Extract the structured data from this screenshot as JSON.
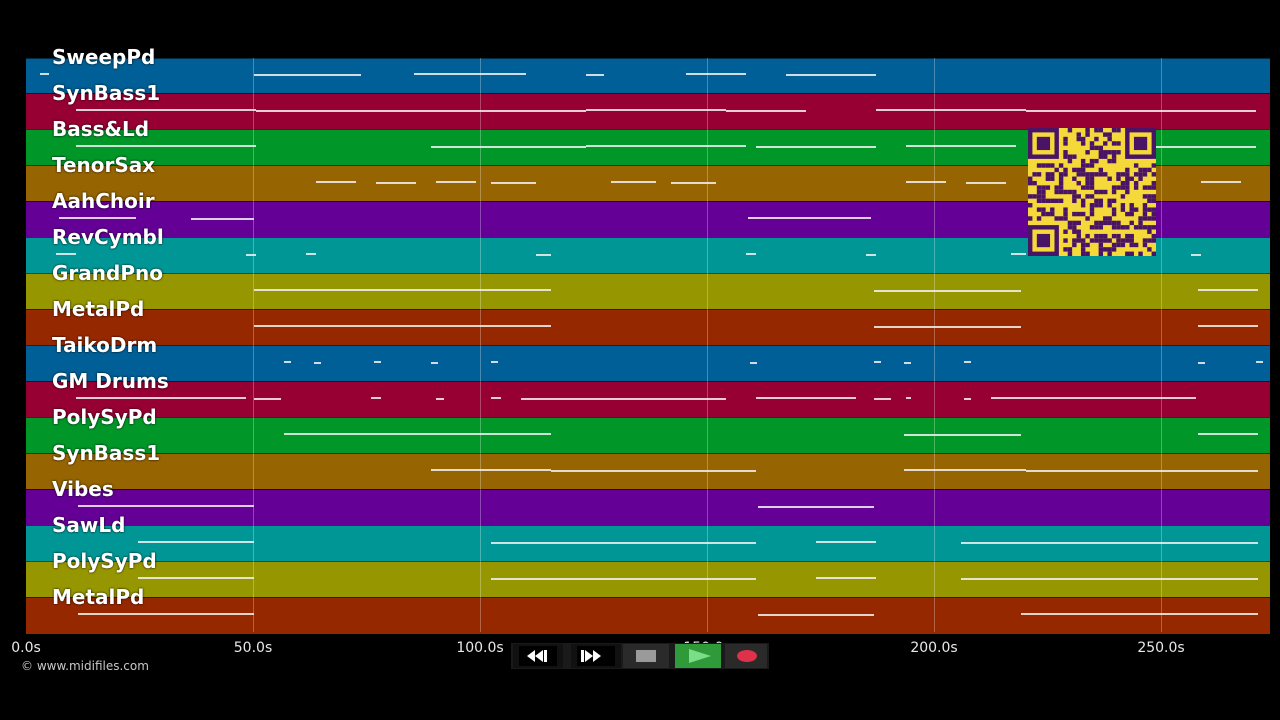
{
  "tracks": [
    {
      "name": "SweepPd",
      "color": "#005f96"
    },
    {
      "name": "SynBass1",
      "color": "#960032"
    },
    {
      "name": "Bass&Ld",
      "color": "#009628"
    },
    {
      "name": "TenorSax",
      "color": "#966400"
    },
    {
      "name": "AahChoir",
      "color": "#640096"
    },
    {
      "name": "RevCymbl",
      "color": "#009696"
    },
    {
      "name": "GrandPno",
      "color": "#969600"
    },
    {
      "name": "MetalPd",
      "color": "#962800"
    },
    {
      "name": "TaikoDrm",
      "color": "#005f96"
    },
    {
      "name": "GM Drums",
      "color": "#960032"
    },
    {
      "name": "PolySyPd",
      "color": "#009628"
    },
    {
      "name": "SynBass1",
      "color": "#966400"
    },
    {
      "name": "Vibes",
      "color": "#640096"
    },
    {
      "name": "SawLd",
      "color": "#009696"
    },
    {
      "name": "PolySyPd",
      "color": "#969600"
    },
    {
      "name": "MetalPd",
      "color": "#962800"
    }
  ],
  "timeline": {
    "ticks": [
      "0.0s",
      "50.0s",
      "100.0s",
      "150.0s",
      "200.0s",
      "250.0s"
    ],
    "tick_values": [
      0,
      50,
      100,
      150,
      200,
      250
    ],
    "duration_seconds": 273
  },
  "transport": {
    "rewind_icon": "rewind-icon",
    "fast_forward_icon": "fast-forward-icon",
    "stop_icon": "stop-icon",
    "play_icon": "play-icon",
    "record_icon": "record-icon",
    "play_color": "#2e9a3a",
    "record_color": "#e0314a"
  },
  "copyright": "© www.midifiles.com",
  "qr_colors": {
    "background": "#f5d93a",
    "modules": "#4a1466"
  }
}
